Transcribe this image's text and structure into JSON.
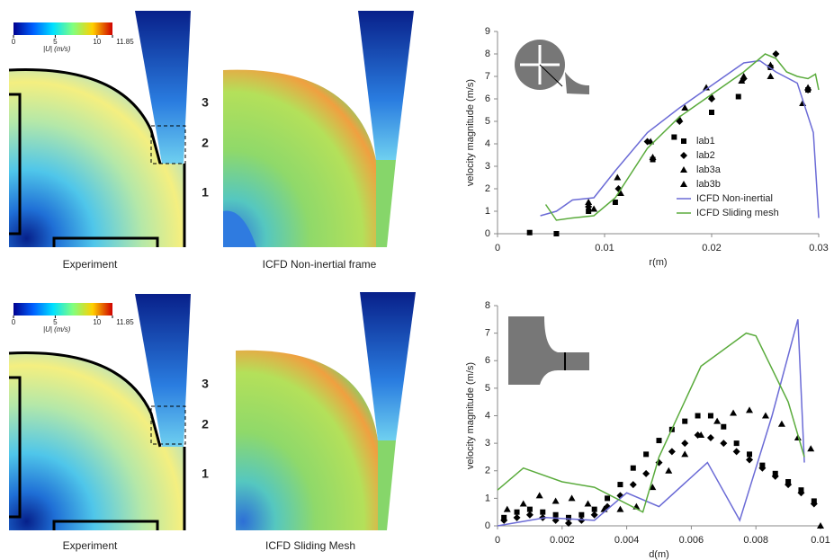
{
  "colorbar": {
    "label": "|U| (m/s)",
    "lim": [
      0,
      11.85
    ],
    "ticks": [
      0,
      5,
      10,
      11.85
    ]
  },
  "rows": [
    {
      "captions": [
        "Experiment",
        "ICFD Non-inertial frame"
      ],
      "zones": [
        "3",
        "2",
        "1"
      ]
    },
    {
      "captions": [
        "Experiment",
        "ICFD Sliding Mesh"
      ],
      "zones": [
        "3",
        "2",
        "1"
      ]
    }
  ],
  "chart_data": [
    {
      "type": "line",
      "xlabel": "r(m)",
      "ylabel": "velocity magnitude (m/s)",
      "xlim": [
        0,
        0.03
      ],
      "xticks": [
        0,
        0.01,
        0.02,
        0.03
      ],
      "ylim": [
        0,
        9
      ],
      "yticks": [
        0,
        1,
        2,
        3,
        4,
        5,
        6,
        7,
        8,
        9
      ],
      "legend": "right",
      "series": [
        {
          "name": "lab1",
          "marker": "square",
          "color": "#000000",
          "x": [
            0.003,
            0.0055,
            0.0085,
            0.011,
            0.0145,
            0.0165,
            0.02,
            0.0225,
            0.0255,
            0.029
          ],
          "values": [
            0.05,
            0.0,
            1.0,
            1.4,
            3.3,
            4.3,
            5.4,
            6.1,
            7.4,
            6.4
          ]
        },
        {
          "name": "lab2",
          "marker": "diamond",
          "color": "#000000",
          "x": [
            0.0085,
            0.0113,
            0.014,
            0.017,
            0.02,
            0.023,
            0.026,
            0.029
          ],
          "values": [
            1.2,
            2.0,
            4.1,
            5.0,
            6.0,
            6.9,
            8.0,
            6.4
          ]
        },
        {
          "name": "lab3a",
          "marker": "triangle",
          "color": "#000000",
          "x": [
            0.0085,
            0.0112,
            0.0143,
            0.017,
            0.0195,
            0.023,
            0.0255,
            0.0285
          ],
          "values": [
            1.4,
            2.5,
            4.1,
            5.1,
            6.5,
            7.0,
            7.0,
            5.8
          ]
        },
        {
          "name": "lab3b",
          "marker": "triangle",
          "color": "#000000",
          "x": [
            0.009,
            0.0115,
            0.0145,
            0.0175,
            0.02,
            0.0228,
            0.0255,
            0.029
          ],
          "values": [
            1.1,
            1.8,
            3.4,
            5.6,
            6.1,
            6.8,
            7.5,
            6.5
          ]
        },
        {
          "name": "ICFD Non-inertial",
          "marker": "none",
          "color": "#6b6bd6",
          "x": [
            0.004,
            0.0055,
            0.007,
            0.009,
            0.011,
            0.014,
            0.017,
            0.02,
            0.023,
            0.0245,
            0.026,
            0.028,
            0.0295,
            0.03
          ],
          "values": [
            0.8,
            1.0,
            1.5,
            1.6,
            2.8,
            4.5,
            5.6,
            6.6,
            7.6,
            7.7,
            7.2,
            6.7,
            4.5,
            0.7
          ]
        },
        {
          "name": "ICFD Sliding mesh",
          "marker": "none",
          "color": "#5aab3c",
          "x": [
            0.0045,
            0.0055,
            0.007,
            0.009,
            0.011,
            0.014,
            0.017,
            0.02,
            0.023,
            0.025,
            0.026,
            0.027,
            0.028,
            0.029,
            0.0297,
            0.03
          ],
          "values": [
            1.3,
            0.6,
            0.7,
            0.8,
            1.6,
            3.8,
            5.2,
            6.2,
            7.2,
            8.0,
            7.8,
            7.2,
            7.0,
            6.9,
            7.1,
            6.4
          ]
        }
      ]
    },
    {
      "type": "line",
      "xlabel": "d(m)",
      "ylabel": "velocity magnitude (m/s)",
      "xlim": [
        0,
        0.01
      ],
      "xticks": [
        0,
        0.002,
        0.004,
        0.006,
        0.008,
        0.01
      ],
      "ylim": [
        0,
        8
      ],
      "yticks": [
        0,
        1,
        2,
        3,
        4,
        5,
        6,
        7,
        8
      ],
      "series": [
        {
          "marker": "square",
          "color": "#000000",
          "x": [
            0.0002,
            0.0006,
            0.001,
            0.0014,
            0.0018,
            0.0022,
            0.0026,
            0.003,
            0.0034,
            0.0038,
            0.0042,
            0.0046,
            0.005,
            0.0054,
            0.0058,
            0.0062,
            0.0066,
            0.007,
            0.0074,
            0.0078,
            0.0082,
            0.0086,
            0.009,
            0.0094,
            0.0098
          ],
          "values": [
            0.3,
            0.5,
            0.6,
            0.5,
            0.4,
            0.3,
            0.4,
            0.6,
            1.0,
            1.5,
            2.1,
            2.6,
            3.1,
            3.5,
            3.8,
            4.0,
            4.0,
            3.6,
            3.0,
            2.6,
            2.2,
            1.9,
            1.6,
            1.3,
            0.9
          ]
        },
        {
          "marker": "diamond",
          "color": "#000000",
          "x": [
            0.0002,
            0.0006,
            0.001,
            0.0014,
            0.0018,
            0.0022,
            0.0026,
            0.003,
            0.0034,
            0.0038,
            0.0042,
            0.0046,
            0.005,
            0.0054,
            0.0058,
            0.0062,
            0.0066,
            0.007,
            0.0074,
            0.0078,
            0.0082,
            0.0086,
            0.009,
            0.0094,
            0.0098
          ],
          "values": [
            0.2,
            0.3,
            0.4,
            0.3,
            0.2,
            0.1,
            0.2,
            0.4,
            0.7,
            1.1,
            1.5,
            1.9,
            2.3,
            2.7,
            3.0,
            3.3,
            3.2,
            3.0,
            2.7,
            2.4,
            2.1,
            1.8,
            1.5,
            1.2,
            0.8
          ]
        },
        {
          "marker": "triangle",
          "color": "#000000",
          "x": [
            0.0003,
            0.0008,
            0.0013,
            0.0018,
            0.0023,
            0.0028,
            0.0033,
            0.0038,
            0.0043,
            0.0048,
            0.0053,
            0.0058,
            0.0063,
            0.0068,
            0.0073,
            0.0078,
            0.0083,
            0.0088,
            0.0093,
            0.0097,
            0.01
          ],
          "values": [
            0.6,
            0.8,
            1.1,
            0.9,
            1.0,
            0.8,
            0.6,
            0.6,
            0.7,
            1.4,
            2.0,
            2.6,
            3.3,
            3.8,
            4.1,
            4.2,
            4.0,
            3.7,
            3.2,
            2.8,
            0.0
          ]
        },
        {
          "marker": "none",
          "color": "#6b6bd6",
          "x": [
            0,
            0.0015,
            0.003,
            0.004,
            0.005,
            0.0065,
            0.0075,
            0.0085,
            0.0093,
            0.0095
          ],
          "values": [
            0.0,
            0.3,
            0.2,
            1.2,
            0.7,
            2.3,
            0.2,
            4.0,
            7.5,
            2.3
          ]
        },
        {
          "marker": "none",
          "color": "#5aab3c",
          "x": [
            0,
            0.0008,
            0.002,
            0.003,
            0.0045,
            0.005,
            0.0063,
            0.0077,
            0.008,
            0.009,
            0.0095
          ],
          "values": [
            1.3,
            2.1,
            1.6,
            1.4,
            0.5,
            2.5,
            5.8,
            7.0,
            6.9,
            4.5,
            2.5
          ]
        }
      ]
    }
  ]
}
